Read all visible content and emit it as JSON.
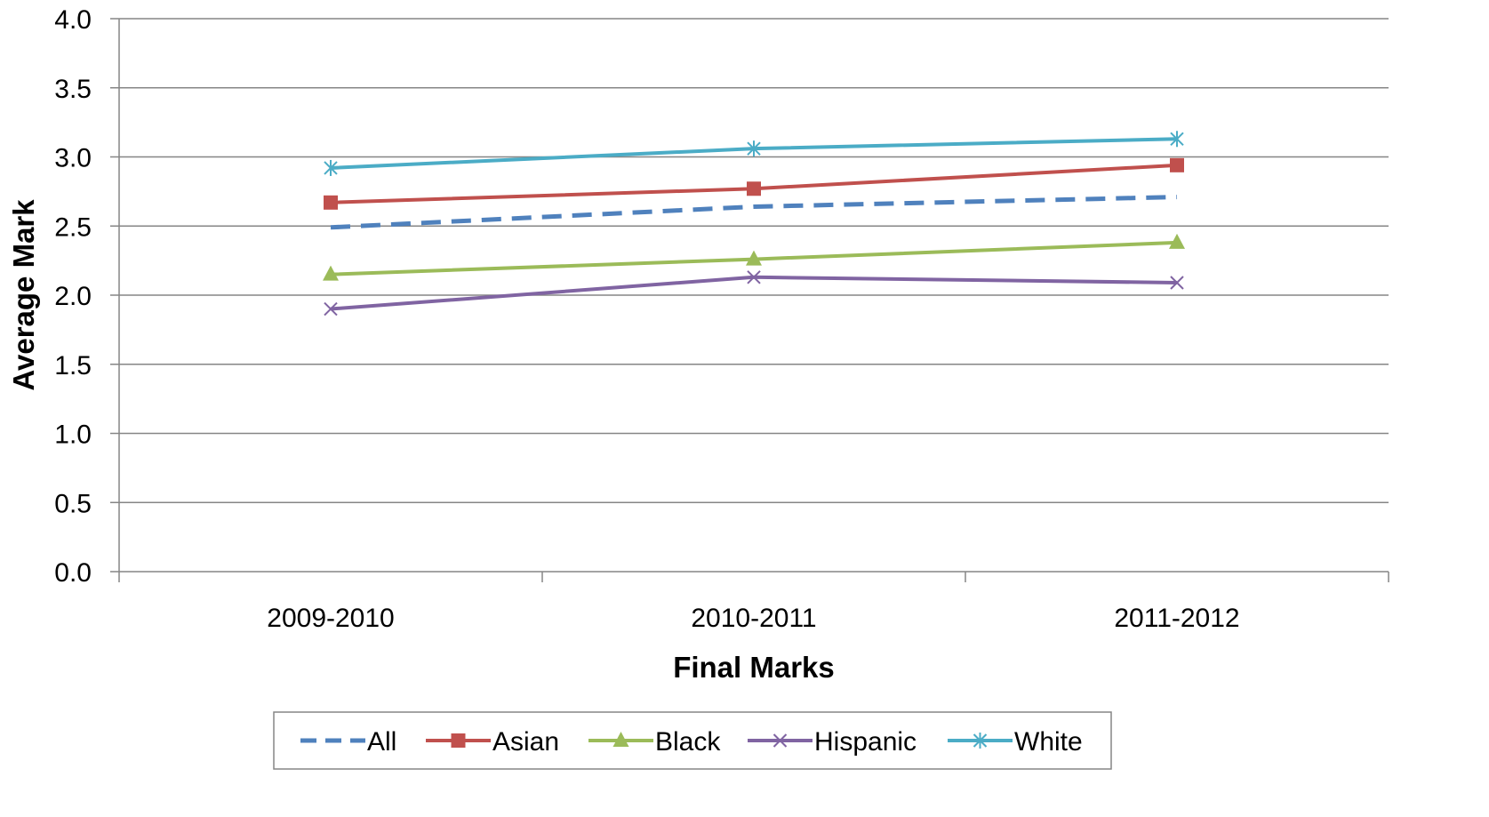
{
  "chart_data": {
    "type": "line",
    "title": "",
    "xlabel": "Final Marks",
    "ylabel": "Average Mark",
    "categories": [
      "2009-2010",
      "2010-2011",
      "2011-2012"
    ],
    "ylim": [
      0,
      4
    ],
    "yticks": [
      "0.0",
      "0.5",
      "1.0",
      "1.5",
      "2.0",
      "2.5",
      "3.0",
      "3.5",
      "4.0"
    ],
    "grid": "horizontal",
    "legend_position": "bottom",
    "series": [
      {
        "name": "All",
        "values": [
          2.49,
          2.64,
          2.71
        ],
        "color": "#4F81BD",
        "style": "dashed",
        "marker": "none"
      },
      {
        "name": "Asian",
        "values": [
          2.67,
          2.77,
          2.94
        ],
        "color": "#C0504D",
        "style": "solid",
        "marker": "square"
      },
      {
        "name": "Black",
        "values": [
          2.15,
          2.26,
          2.38
        ],
        "color": "#9BBB59",
        "style": "solid",
        "marker": "triangle"
      },
      {
        "name": "Hispanic",
        "values": [
          1.9,
          2.13,
          2.09
        ],
        "color": "#8064A2",
        "style": "solid",
        "marker": "x"
      },
      {
        "name": "White",
        "values": [
          2.92,
          3.06,
          3.13
        ],
        "color": "#4BACC6",
        "style": "solid",
        "marker": "star"
      }
    ]
  }
}
